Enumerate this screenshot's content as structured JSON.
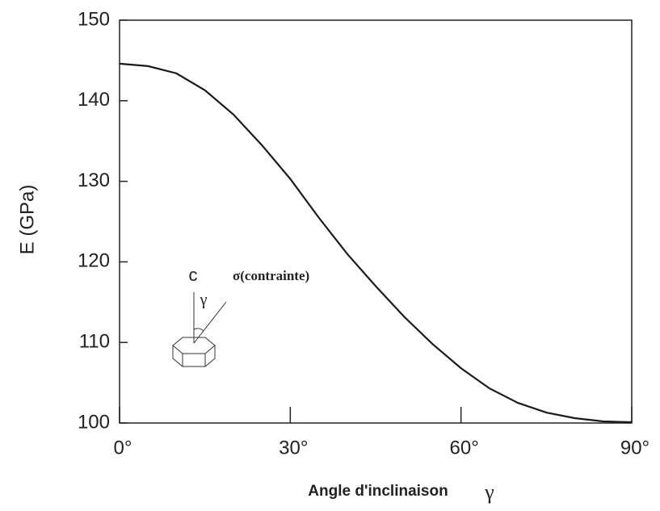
{
  "chart_data": {
    "type": "line",
    "y_label": "E (GPa)",
    "x_label": "Angle d'inclinaison",
    "x_label_symbol": "γ",
    "annotations": [
      "c",
      "γ",
      "σ(contrainte)"
    ],
    "x": [
      0,
      5,
      10,
      15,
      20,
      25,
      30,
      35,
      40,
      45,
      50,
      55,
      60,
      65,
      70,
      75,
      80,
      85,
      90
    ],
    "values": [
      144.6,
      144.3,
      143.4,
      141.3,
      138.3,
      134.5,
      130.3,
      125.5,
      121,
      117,
      113.2,
      109.8,
      106.8,
      104.3,
      102.5,
      101.3,
      100.6,
      100.2,
      100.1
    ],
    "color": "#1a1a1a",
    "xlim": [
      0,
      90
    ],
    "xticks": [
      {
        "value": 0,
        "label": "0°"
      },
      {
        "value": 30,
        "label": "30°"
      },
      {
        "value": 60,
        "label": "60°"
      },
      {
        "value": 90,
        "label": "90°"
      }
    ],
    "ylim": [
      100,
      150
    ],
    "yticks": [
      100,
      110,
      120,
      130,
      140,
      150
    ],
    "grid": false
  }
}
